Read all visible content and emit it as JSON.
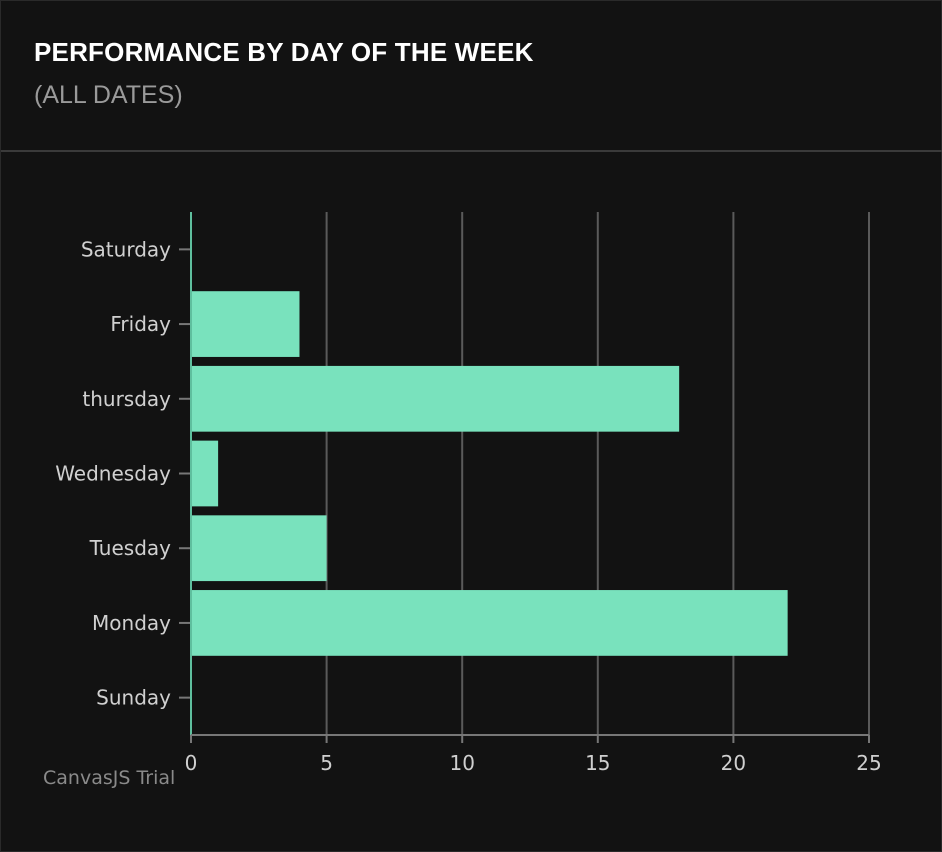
{
  "header": {
    "title": "PERFORMANCE BY DAY OF THE WEEK",
    "subtitle": "(ALL DATES)"
  },
  "watermark": "CanvasJS Trial",
  "chart_data": {
    "type": "bar",
    "orientation": "horizontal",
    "categories": [
      "Sunday",
      "Monday",
      "Tuesday",
      "Wednesday",
      "thursday",
      "Friday",
      "Saturday"
    ],
    "values": [
      0,
      22,
      5,
      1,
      18,
      4,
      0
    ],
    "xlim": [
      0,
      25
    ],
    "xticks": [
      0,
      5,
      10,
      15,
      20,
      25
    ],
    "grid": true,
    "bar_color": "#79e2bd",
    "title": "",
    "xlabel": "",
    "ylabel": ""
  }
}
